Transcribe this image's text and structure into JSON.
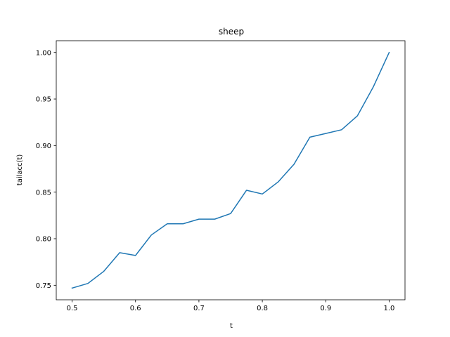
{
  "chart_data": {
    "type": "line",
    "title": "sheep",
    "xlabel": "t",
    "ylabel": "tailacc(t)",
    "xlim": [
      0.475,
      1.025
    ],
    "ylim": [
      0.7344,
      1.0126
    ],
    "xticks": [
      0.5,
      0.6,
      0.7,
      0.8,
      0.9,
      1.0
    ],
    "xtick_labels": [
      "0.5",
      "0.6",
      "0.7",
      "0.8",
      "0.9",
      "1.0"
    ],
    "yticks": [
      0.75,
      0.8,
      0.85,
      0.9,
      0.95,
      1.0
    ],
    "ytick_labels": [
      "0.75",
      "0.80",
      "0.85",
      "0.90",
      "0.95",
      "1.00"
    ],
    "grid": false,
    "legend": "none",
    "series": [
      {
        "color": "#1f77b4",
        "x": [
          0.5,
          0.525,
          0.55,
          0.575,
          0.6,
          0.625,
          0.65,
          0.675,
          0.7,
          0.725,
          0.75,
          0.775,
          0.8,
          0.825,
          0.85,
          0.875,
          0.9,
          0.925,
          0.95,
          0.975,
          1.0
        ],
        "y": [
          0.747,
          0.752,
          0.765,
          0.785,
          0.782,
          0.804,
          0.816,
          0.816,
          0.821,
          0.821,
          0.827,
          0.852,
          0.848,
          0.861,
          0.88,
          0.909,
          0.913,
          0.917,
          0.932,
          0.963,
          1.0
        ]
      }
    ]
  }
}
